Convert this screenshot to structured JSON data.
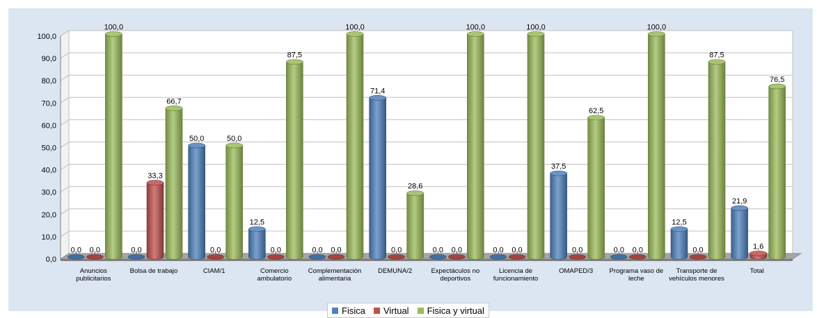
{
  "chart_data": {
    "type": "bar",
    "categories": [
      [
        "Anuncios",
        "publicitarios"
      ],
      [
        "Bolsa de trabajo"
      ],
      [
        "CIAM/1"
      ],
      [
        "Comercio",
        "ambulatorio"
      ],
      [
        "Complementación",
        "alimentaria"
      ],
      [
        "DEMUNA/2"
      ],
      [
        "Expectáculos no",
        "deportivos"
      ],
      [
        "Licencia de",
        "funcionamiento"
      ],
      [
        "OMAPED/3"
      ],
      [
        "Programa vaso de",
        "leche"
      ],
      [
        "Transporte de",
        "vehículos menores"
      ],
      [
        "Total"
      ]
    ],
    "series": [
      {
        "name": "Fisica",
        "color": "#4f81bd",
        "values": [
          0.0,
          0.0,
          50.0,
          12.5,
          0.0,
          71.4,
          0.0,
          0.0,
          37.5,
          0.0,
          12.5,
          21.9
        ],
        "labels": [
          "0,0",
          "0,0",
          "50,0",
          "12,5",
          "0,0",
          "71,4",
          "0,0",
          "0,0",
          "37,5",
          "0,0",
          "12,5",
          "21,9"
        ]
      },
      {
        "name": "Virtual",
        "color": "#c0504d",
        "values": [
          0.0,
          33.3,
          0.0,
          0.0,
          0.0,
          0.0,
          0.0,
          0.0,
          0.0,
          0.0,
          0.0,
          1.6
        ],
        "labels": [
          "0,0",
          "33,3",
          "0,0",
          "0,0",
          "0,0",
          "0,0",
          "0,0",
          "0,0",
          "0,0",
          "0,0",
          "0,0",
          "1,6"
        ]
      },
      {
        "name": "Fisica y virtual",
        "color": "#9bbb59",
        "values": [
          100.0,
          66.7,
          50.0,
          87.5,
          100.0,
          28.6,
          100.0,
          100.0,
          62.5,
          100.0,
          87.5,
          76.5
        ],
        "labels": [
          "100,0",
          "66,7",
          "50,0",
          "87,5",
          "100,0",
          "28,6",
          "100,0",
          "100,0",
          "62,5",
          "100,0",
          "87,5",
          "76,5"
        ]
      }
    ],
    "yticks": [
      "0,0",
      "10,0",
      "20,0",
      "30,0",
      "40,0",
      "50,0",
      "60,0",
      "70,0",
      "80,0",
      "90,0",
      "100,0"
    ],
    "ylim": [
      0,
      100
    ],
    "grid": true,
    "legend_position": "bottom",
    "title": "",
    "xlabel": "",
    "ylabel": ""
  }
}
